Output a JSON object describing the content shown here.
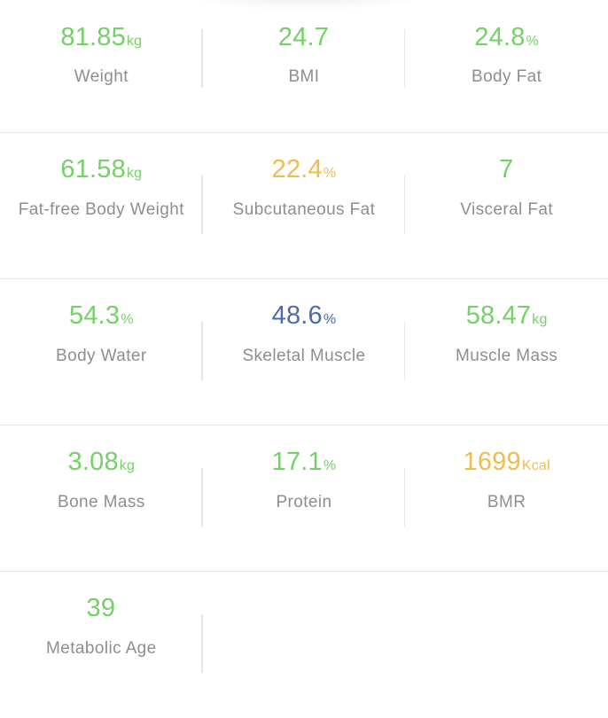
{
  "colors": {
    "green": "#74d165",
    "orange": "#f0bd4c",
    "blue": "#4e6aa8",
    "label_gray": "#8e8e8e",
    "divider": "#e6e6e6"
  },
  "metrics": [
    {
      "label": "Weight",
      "value": "81.85",
      "unit": "kg",
      "status": "green"
    },
    {
      "label": "BMI",
      "value": "24.7",
      "unit": "",
      "status": "green"
    },
    {
      "label": "Body Fat",
      "value": "24.8",
      "unit": "%",
      "status": "green"
    },
    {
      "label": "Fat-free Body Weight",
      "value": "61.58",
      "unit": "kg",
      "status": "green"
    },
    {
      "label": "Subcutaneous Fat",
      "value": "22.4",
      "unit": "%",
      "status": "orange"
    },
    {
      "label": "Visceral Fat",
      "value": "7",
      "unit": "",
      "status": "green"
    },
    {
      "label": "Body Water",
      "value": "54.3",
      "unit": "%",
      "status": "green"
    },
    {
      "label": "Skeletal Muscle",
      "value": "48.6",
      "unit": "%",
      "status": "blue"
    },
    {
      "label": "Muscle Mass",
      "value": "58.47",
      "unit": "kg",
      "status": "green"
    },
    {
      "label": "Bone Mass",
      "value": "3.08",
      "unit": "kg",
      "status": "green"
    },
    {
      "label": "Protein",
      "value": "17.1",
      "unit": "%",
      "status": "green"
    },
    {
      "label": "BMR",
      "value": "1699",
      "unit": "Kcal",
      "status": "orange"
    },
    {
      "label": "Metabolic Age",
      "value": "39",
      "unit": "",
      "status": "green"
    }
  ]
}
